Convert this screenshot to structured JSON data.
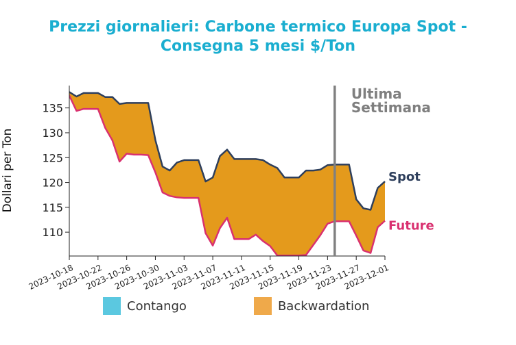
{
  "chart_data": {
    "type": "area",
    "title_lines": [
      "Prezzi giornalieri: Carbone termico Europa Spot -",
      "Consegna 5 mesi $/Ton"
    ],
    "ylabel": "Dollari per Ton",
    "xlabel": "",
    "ylim": [
      105.2,
      139.5
    ],
    "yticks": [
      110,
      115,
      120,
      125,
      130,
      135
    ],
    "xlim": [
      "2023-10-18",
      "2023-12-01"
    ],
    "xticks": [
      "2023-10-18",
      "2023-10-22",
      "2023-10-26",
      "2023-10-30",
      "2023-11-03",
      "2023-11-07",
      "2023-11-11",
      "2023-11-15",
      "2023-11-19",
      "2023-11-23",
      "2023-11-27",
      "2023-12-01"
    ],
    "series": [
      {
        "name": "Spot",
        "color": "#2e3f5c",
        "x": [
          "2023-10-18",
          "2023-10-19",
          "2023-10-20",
          "2023-10-21",
          "2023-10-22",
          "2023-10-23",
          "2023-10-24",
          "2023-10-25",
          "2023-10-26",
          "2023-10-27",
          "2023-10-28",
          "2023-10-29",
          "2023-10-30",
          "2023-10-31",
          "2023-11-01",
          "2023-11-02",
          "2023-11-03",
          "2023-11-04",
          "2023-11-05",
          "2023-11-06",
          "2023-11-07",
          "2023-11-08",
          "2023-11-09",
          "2023-11-10",
          "2023-11-11",
          "2023-11-12",
          "2023-11-13",
          "2023-11-14",
          "2023-11-15",
          "2023-11-16",
          "2023-11-17",
          "2023-11-18",
          "2023-11-19",
          "2023-11-20",
          "2023-11-21",
          "2023-11-22",
          "2023-11-23",
          "2023-11-24",
          "2023-11-25",
          "2023-11-26",
          "2023-11-27",
          "2023-11-28",
          "2023-11-29",
          "2023-11-30",
          "2023-12-01"
        ],
        "values": [
          138.2,
          137.3,
          138.0,
          138.0,
          138.0,
          137.2,
          137.2,
          135.8,
          136.0,
          136.0,
          136.0,
          136.0,
          128.5,
          123.2,
          122.4,
          124.0,
          124.5,
          124.5,
          124.5,
          120.2,
          121.0,
          125.3,
          126.6,
          124.7,
          124.7,
          124.7,
          124.7,
          124.5,
          123.6,
          122.9,
          121.0,
          121.0,
          121.0,
          122.4,
          122.4,
          122.6,
          123.5,
          123.6,
          123.6,
          123.6,
          116.6,
          114.8,
          114.5,
          118.9,
          120.2
        ]
      },
      {
        "name": "Future",
        "color": "#d9306f",
        "x": [
          "2023-10-18",
          "2023-10-19",
          "2023-10-20",
          "2023-10-21",
          "2023-10-22",
          "2023-10-23",
          "2023-10-24",
          "2023-10-25",
          "2023-10-26",
          "2023-10-27",
          "2023-10-28",
          "2023-10-29",
          "2023-10-30",
          "2023-10-31",
          "2023-11-01",
          "2023-11-02",
          "2023-11-03",
          "2023-11-04",
          "2023-11-05",
          "2023-11-06",
          "2023-11-07",
          "2023-11-08",
          "2023-11-09",
          "2023-11-10",
          "2023-11-11",
          "2023-11-12",
          "2023-11-13",
          "2023-11-14",
          "2023-11-15",
          "2023-11-16",
          "2023-11-17",
          "2023-11-18",
          "2023-11-19",
          "2023-11-20",
          "2023-11-21",
          "2023-11-22",
          "2023-11-23",
          "2023-11-24",
          "2023-11-25",
          "2023-11-26",
          "2023-11-27",
          "2023-11-28",
          "2023-11-29",
          "2023-11-30",
          "2023-12-01"
        ],
        "values": [
          137.5,
          134.4,
          134.8,
          134.8,
          134.8,
          131.0,
          128.5,
          124.2,
          125.8,
          125.6,
          125.6,
          125.5,
          122.0,
          118.0,
          117.3,
          117.0,
          116.9,
          116.9,
          116.9,
          109.8,
          107.3,
          110.8,
          112.9,
          108.6,
          108.6,
          108.6,
          109.5,
          108.2,
          107.2,
          105.3,
          105.3,
          105.3,
          105.3,
          105.4,
          107.4,
          109.4,
          111.7,
          112.2,
          112.2,
          112.2,
          109.3,
          106.3,
          105.8,
          111.0,
          112.3
        ]
      }
    ],
    "fills": [
      {
        "name": "Contango",
        "color": "#5bc8e0"
      },
      {
        "name": "Backwardation",
        "color": "#e49a1c",
        "legend_color": "#efa94a"
      }
    ],
    "annotations": [
      {
        "text_lines": [
          "Ultima",
          "Settimana"
        ],
        "line_x": "2023-11-24",
        "line_color": "#808080"
      }
    ],
    "grid": false,
    "legend_position": "bottom"
  }
}
